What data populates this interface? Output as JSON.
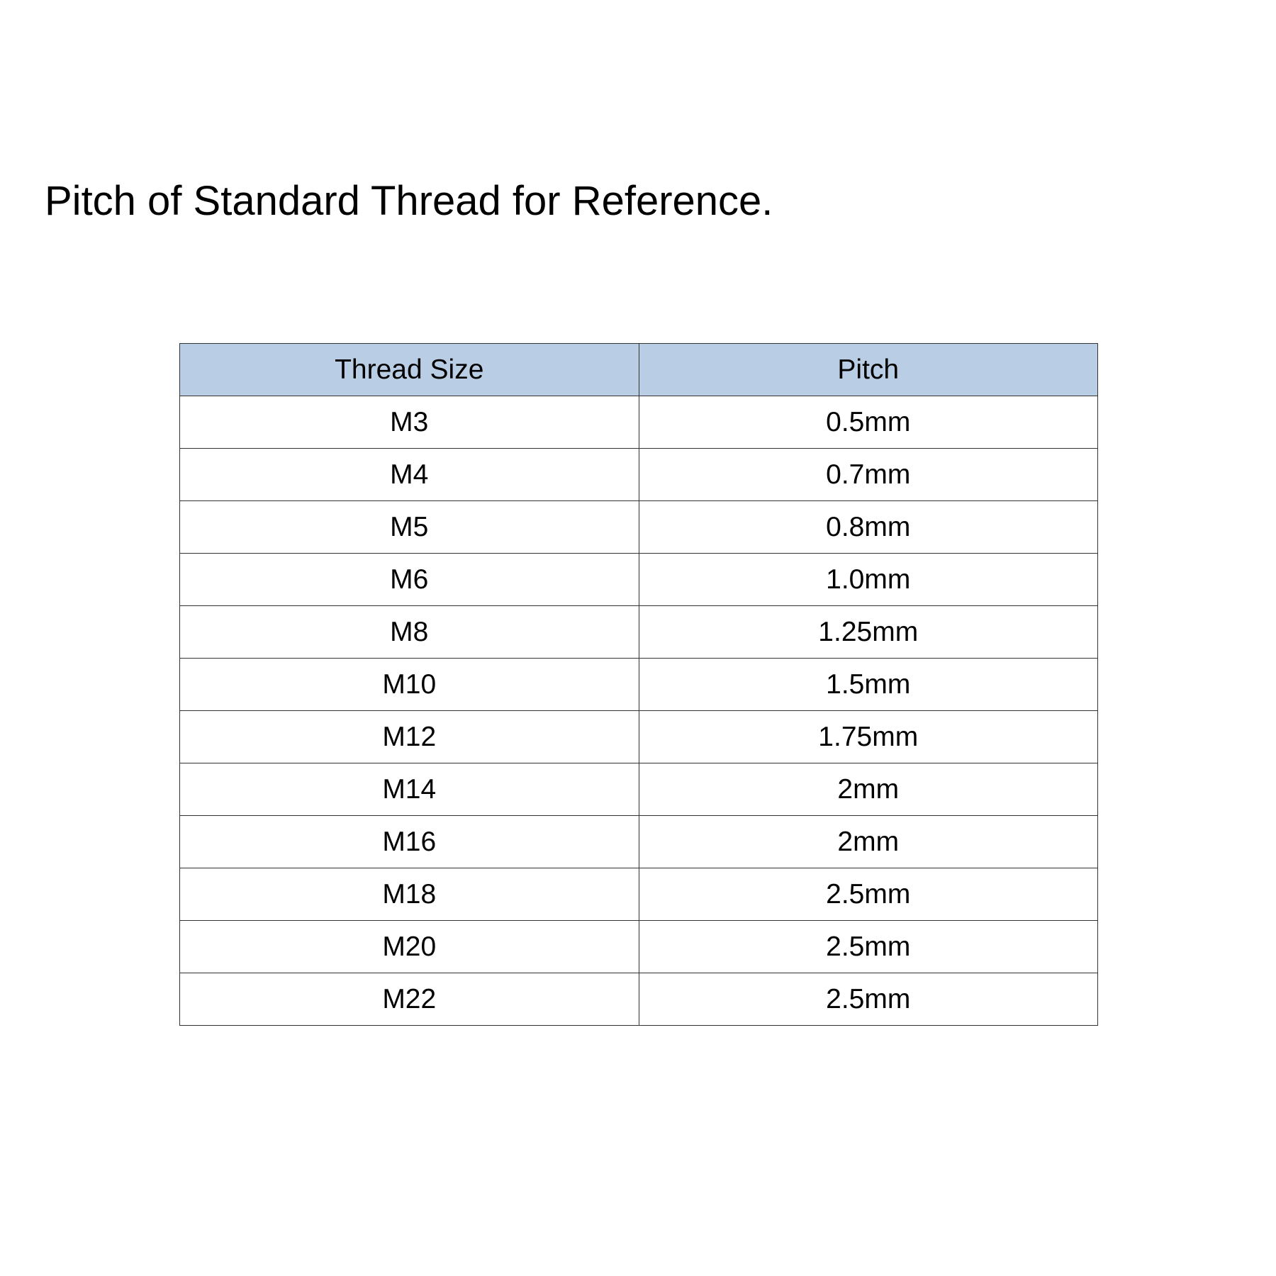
{
  "title": "Pitch of Standard Thread for Reference.",
  "table": {
    "header_color": "#b9cde5",
    "columns": [
      "Thread Size",
      "Pitch"
    ],
    "rows": [
      [
        "M3",
        "0.5mm"
      ],
      [
        "M4",
        "0.7mm"
      ],
      [
        "M5",
        "0.8mm"
      ],
      [
        "M6",
        "1.0mm"
      ],
      [
        "M8",
        "1.25mm"
      ],
      [
        "M10",
        "1.5mm"
      ],
      [
        "M12",
        "1.75mm"
      ],
      [
        "M14",
        "2mm"
      ],
      [
        "M16",
        "2mm"
      ],
      [
        "M18",
        "2.5mm"
      ],
      [
        "M20",
        "2.5mm"
      ],
      [
        "M22",
        "2.5mm"
      ]
    ]
  }
}
